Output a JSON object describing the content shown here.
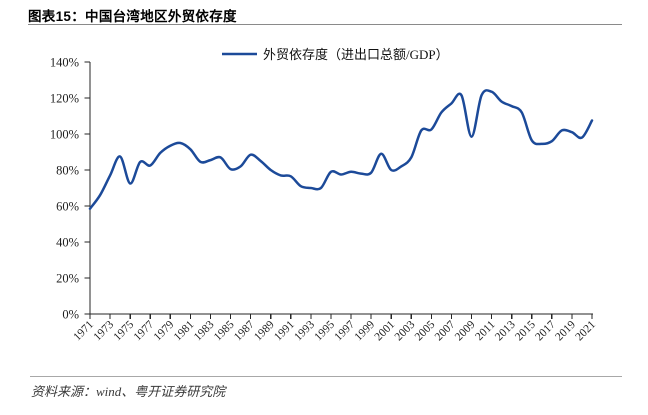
{
  "header": {
    "title": "图表15：中国台湾地区外贸依存度"
  },
  "legend": {
    "label": "外贸依存度（进出口总额/GDP）"
  },
  "footer": {
    "source": "资料来源：wind、粤开证券研究院"
  },
  "colors": {
    "line": "#1c4a99",
    "axis": "#262626",
    "tick_label": "#1f1f1f",
    "title_rule": "#8a8a8a",
    "footer_rule": "#a8a8a8",
    "source_text": "#3a3a3a"
  },
  "chart_data": {
    "type": "line",
    "title": "外贸依存度（进出口总额/GDP）",
    "xlabel": "",
    "ylabel": "",
    "x": [
      1971,
      1972,
      1973,
      1974,
      1975,
      1976,
      1977,
      1978,
      1979,
      1980,
      1981,
      1982,
      1983,
      1984,
      1985,
      1986,
      1987,
      1988,
      1989,
      1990,
      1991,
      1992,
      1993,
      1994,
      1995,
      1996,
      1997,
      1998,
      1999,
      2000,
      2001,
      2002,
      2003,
      2004,
      2005,
      2006,
      2007,
      2008,
      2009,
      2010,
      2011,
      2012,
      2013,
      2014,
      2015,
      2016,
      2017,
      2018,
      2019,
      2020,
      2021
    ],
    "values": [
      58.5,
      66,
      77,
      87.5,
      72.5,
      84.5,
      82.5,
      89.5,
      93.5,
      95,
      91.5,
      84.5,
      85.5,
      87,
      80.5,
      82,
      88.5,
      85,
      80,
      77,
      76.5,
      71,
      70,
      70,
      79,
      77.5,
      79,
      78,
      78.5,
      89,
      80,
      82,
      87,
      102,
      102.5,
      112,
      117,
      121.5,
      98.5,
      121.5,
      123.5,
      118,
      115.5,
      112,
      96.5,
      94.5,
      96,
      102,
      101,
      98,
      107.5
    ],
    "unit": "%",
    "ylim": [
      0,
      140
    ],
    "ytick_step": 20,
    "ytick_labels": [
      "0%",
      "20%",
      "40%",
      "60%",
      "80%",
      "100%",
      "120%",
      "140%"
    ],
    "xtick_labels": [
      "1971",
      "1973",
      "1975",
      "1977",
      "1979",
      "1981",
      "1983",
      "1985",
      "1987",
      "1989",
      "1991",
      "1993",
      "1995",
      "1997",
      "1999",
      "2001",
      "2003",
      "2005",
      "2007",
      "2009",
      "2011",
      "2013",
      "2015",
      "2017",
      "2019",
      "2021"
    ],
    "grid": false,
    "smooth": true,
    "legend_position": "top-center"
  }
}
